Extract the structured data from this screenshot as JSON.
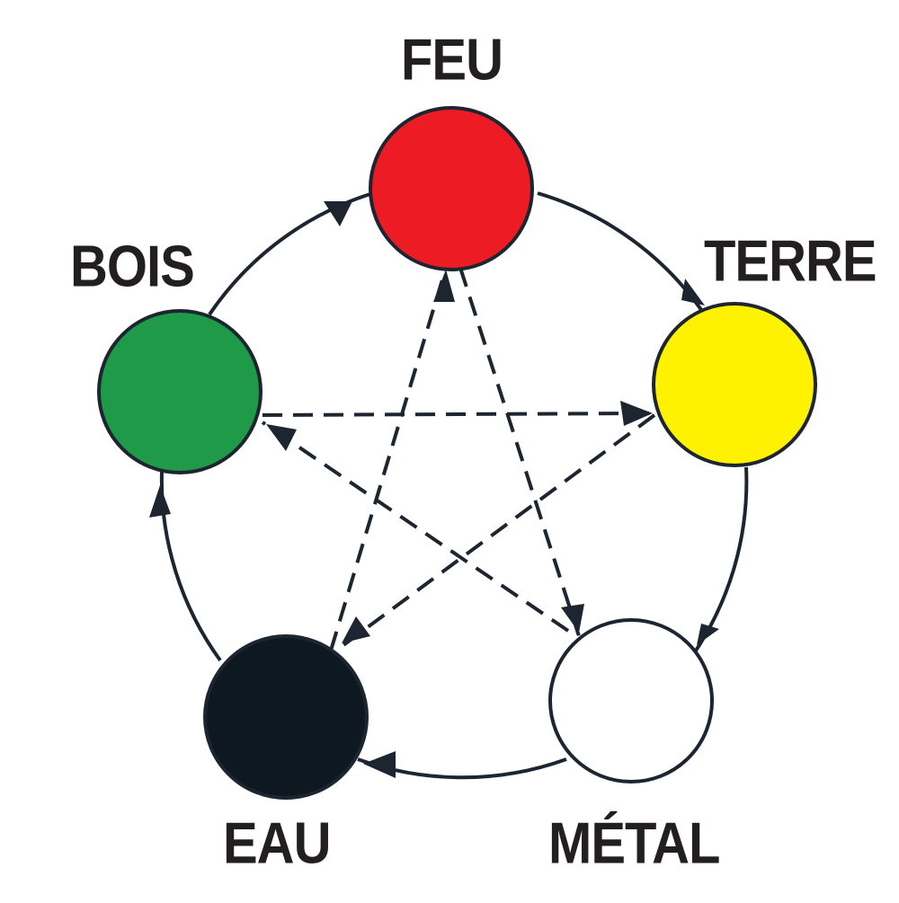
{
  "elements": {
    "feu": {
      "label": "FEU",
      "color": "#ed1c24"
    },
    "terre": {
      "label": "TERRE",
      "color": "#fff200"
    },
    "metal": {
      "label": "MÉTAL",
      "color": "#ffffff"
    },
    "eau": {
      "label": "EAU",
      "color": "#0d1820"
    },
    "bois": {
      "label": "BOIS",
      "color": "#1f9a48"
    }
  },
  "generating_cycle": [
    {
      "from": "bois",
      "to": "feu"
    },
    {
      "from": "feu",
      "to": "terre"
    },
    {
      "from": "terre",
      "to": "metal"
    },
    {
      "from": "metal",
      "to": "eau"
    },
    {
      "from": "eau",
      "to": "bois"
    }
  ],
  "controlling_cycle": [
    {
      "from": "bois",
      "to": "terre"
    },
    {
      "from": "terre",
      "to": "eau"
    },
    {
      "from": "eau",
      "to": "feu"
    },
    {
      "from": "feu",
      "to": "metal"
    },
    {
      "from": "metal",
      "to": "bois"
    }
  ],
  "colors": {
    "stroke": "#1c2530",
    "label": "#231f20"
  }
}
